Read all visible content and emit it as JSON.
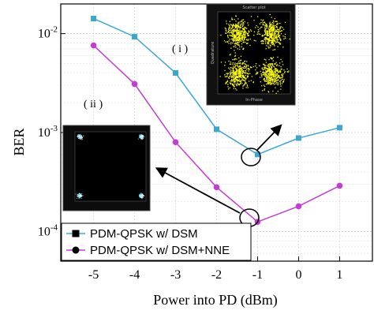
{
  "chart_data": {
    "type": "line",
    "xlabel": "Power into PD (dBm)",
    "ylabel": "BER",
    "xlim": [
      -5.8,
      1.8
    ],
    "ylim_log10": [
      -4.3,
      -1.7
    ],
    "ylog": true,
    "x_ticks": [
      "-5",
      "-4",
      "-3",
      "-2",
      "-1",
      "0",
      "1"
    ],
    "x_tick_values": [
      -5,
      -4,
      -3,
      -2,
      -1,
      0,
      1
    ],
    "y_ticks": [
      {
        "exp": -2,
        "base": "10",
        "power": "-2"
      },
      {
        "exp": -3,
        "base": "10",
        "power": "-3"
      },
      {
        "exp": -4,
        "base": "10",
        "power": "-4"
      }
    ],
    "grid": true,
    "legend_position": "bottom-left",
    "series": [
      {
        "name": "PDM-QPSK w/ DSM",
        "marker": "square",
        "color": "#3aa6d4",
        "x": [
          -5,
          -4,
          -3,
          -2,
          -1,
          0,
          1
        ],
        "y": [
          0.0142,
          0.0093,
          0.004,
          0.00108,
          0.0006,
          0.00088,
          0.00112
        ]
      },
      {
        "name": "PDM-QPSK w/ DSM+NNE",
        "marker": "circle",
        "color": "#c43bd6",
        "x": [
          -5,
          -4,
          -3,
          -2,
          -1,
          0,
          1
        ],
        "y": [
          0.0076,
          0.0031,
          0.0008,
          0.00028,
          0.000125,
          0.00018,
          0.00029
        ]
      }
    ],
    "annotations": [
      {
        "label": "( i )",
        "points_to": "PDM-QPSK w/ DSM at -1 dBm"
      },
      {
        "label": "( ii )",
        "points_to": "PDM-QPSK w/ DSM+NNE at -1 dBm"
      }
    ],
    "insets": [
      {
        "id": "i",
        "title": "Scatter plot",
        "xlabel": "In-Phase",
        "ylabel": "Quadrature",
        "dot_color": "#ffff00"
      },
      {
        "id": "ii",
        "title": "",
        "dot_color": "#33ccff"
      }
    ]
  }
}
